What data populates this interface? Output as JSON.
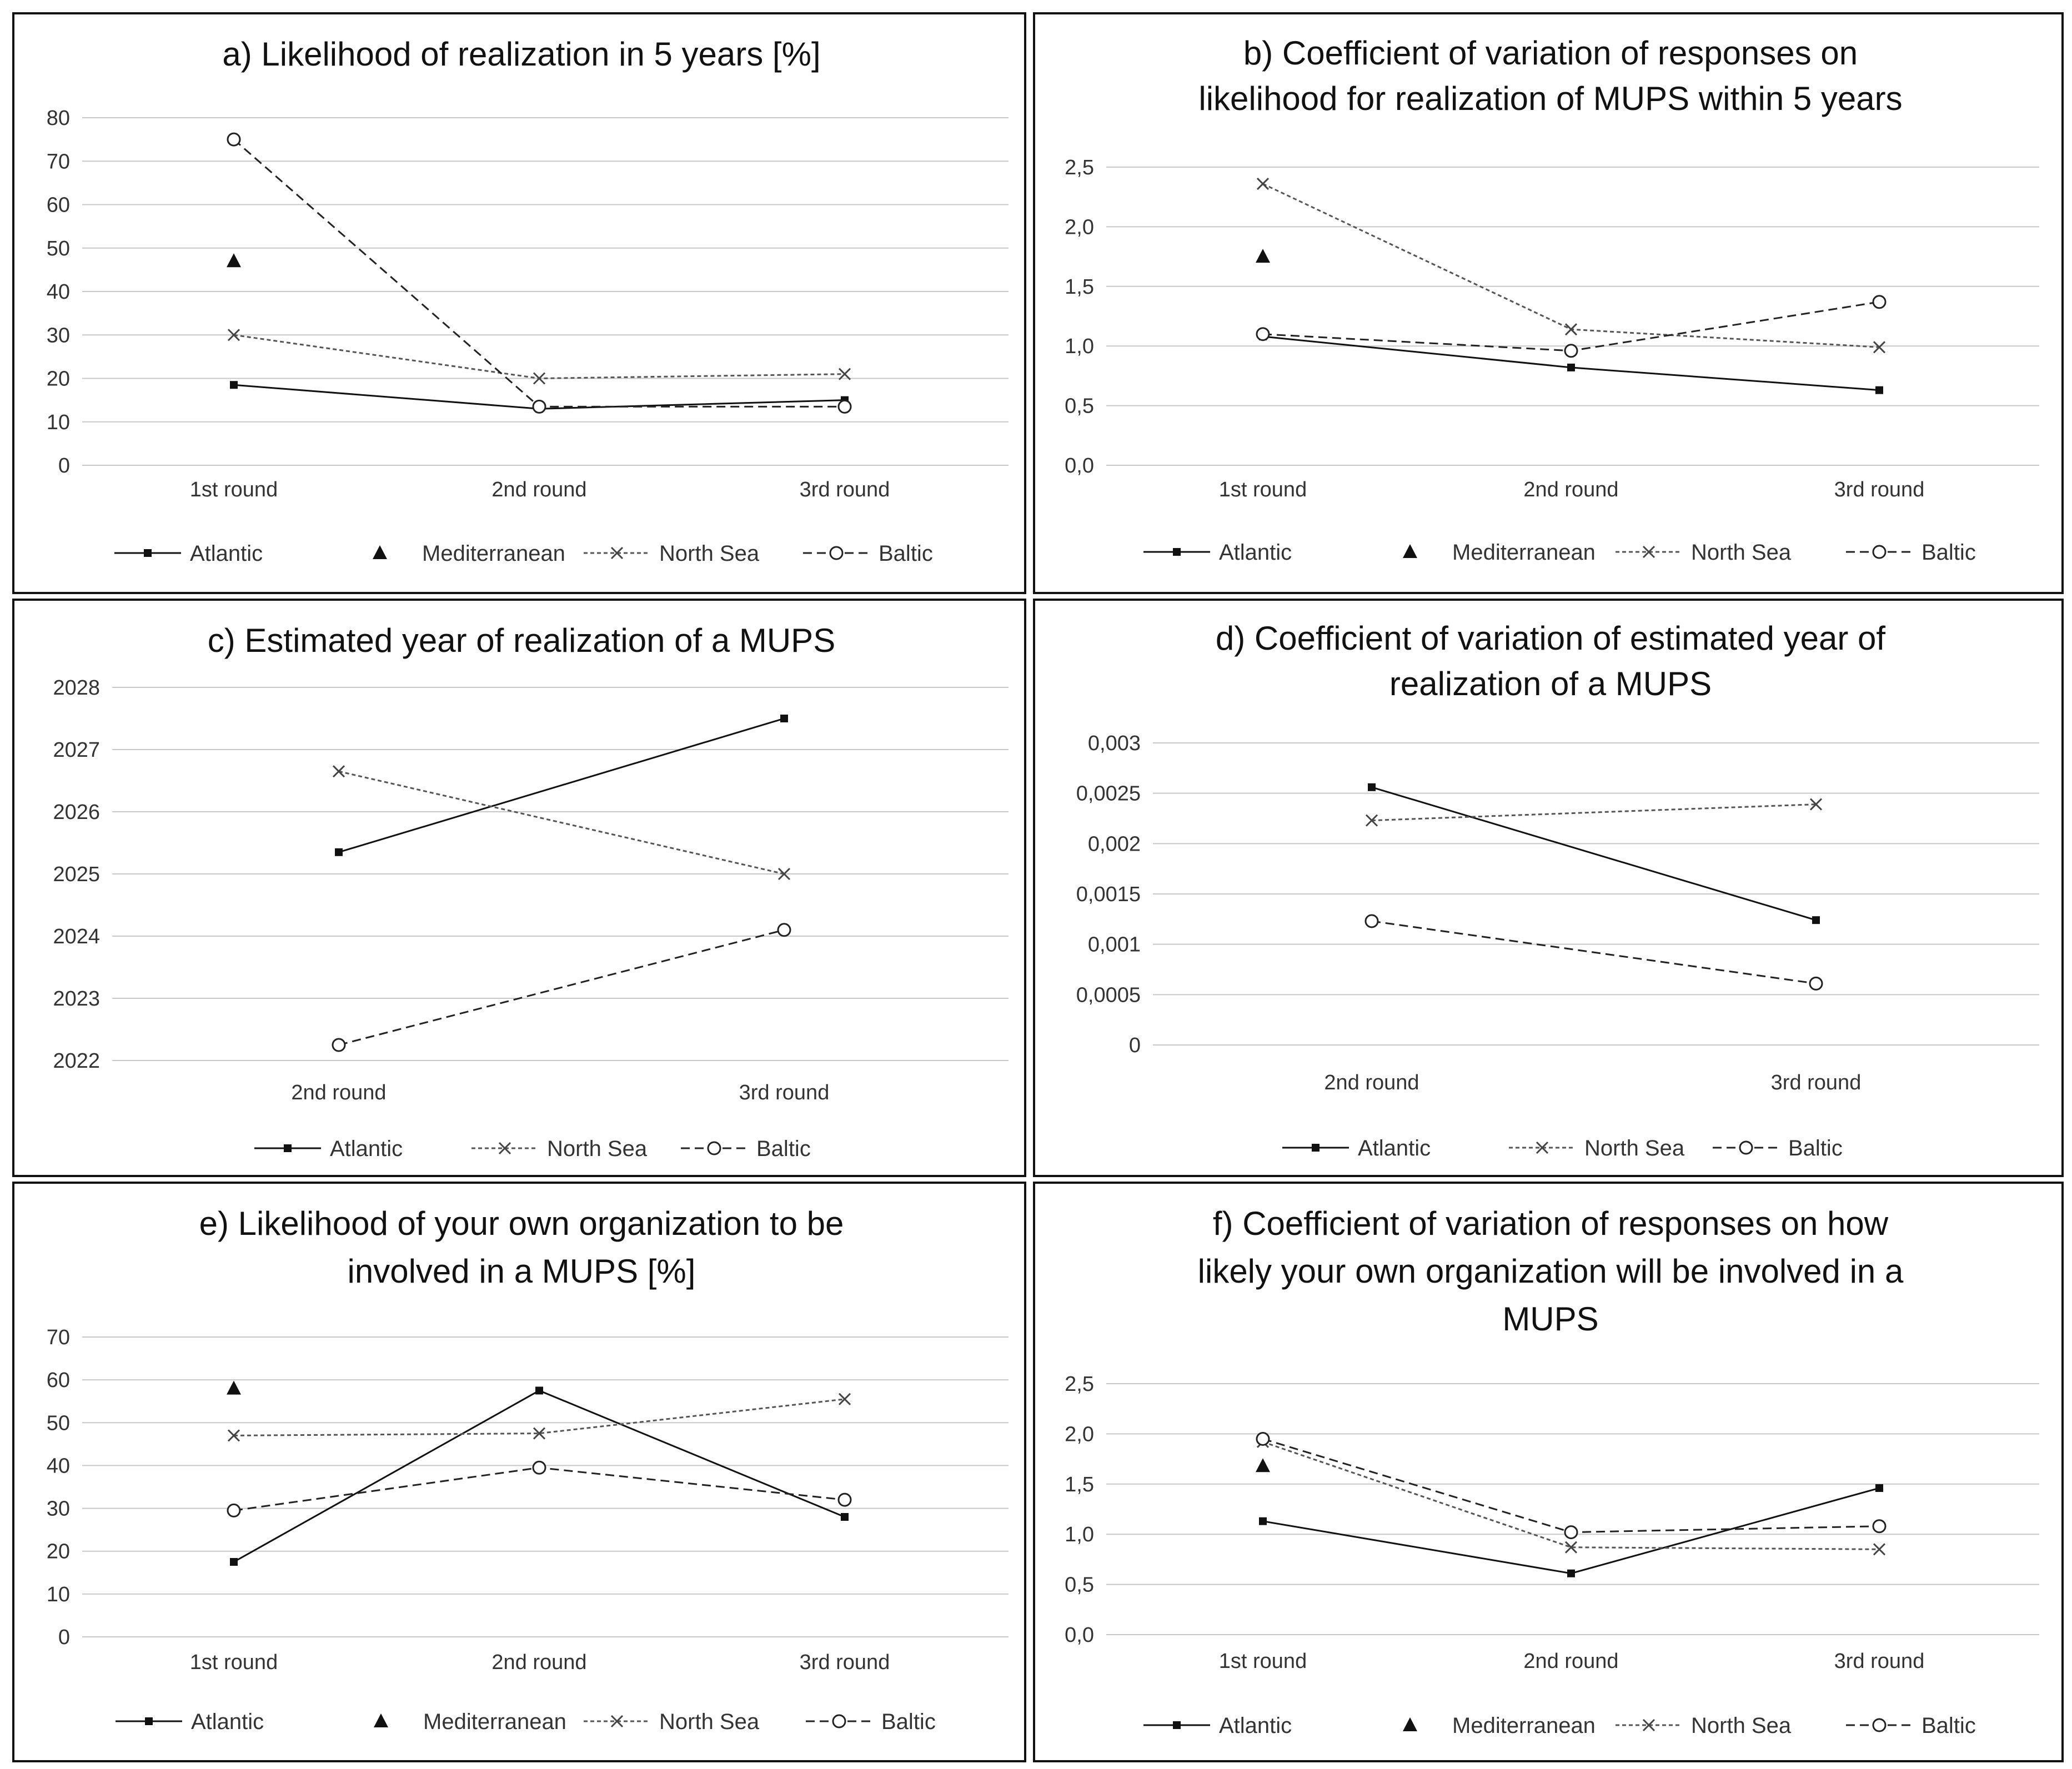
{
  "chart_data": [
    {
      "type": "line",
      "title_lines": [
        "a) Likelihood of realization in 5 years [%]"
      ],
      "categories": [
        "1st round",
        "2nd round",
        "3rd round"
      ],
      "ylim": [
        0,
        80
      ],
      "yticks": [
        "0",
        "10",
        "20",
        "30",
        "40",
        "50",
        "60",
        "70",
        "80"
      ],
      "grid": true,
      "legend": "bottom",
      "series": [
        {
          "name": "Atlantic",
          "style": "atlantic",
          "values": [
            18.5,
            13,
            15
          ]
        },
        {
          "name": "Mediterranean",
          "style": "mediterranean",
          "values": [
            47,
            null,
            null
          ]
        },
        {
          "name": "North Sea",
          "style": "northsea",
          "values": [
            30,
            20,
            21
          ]
        },
        {
          "name": "Baltic",
          "style": "baltic",
          "values": [
            75,
            13.5,
            13.5
          ]
        }
      ]
    },
    {
      "type": "line",
      "title_lines": [
        "b) Coefficient of variation of responses on",
        "likelihood for realization of MUPS within 5 years"
      ],
      "categories": [
        "1st round",
        "2nd round",
        "3rd round"
      ],
      "ylim": [
        0,
        2.5
      ],
      "yticks": [
        "0,0",
        "0,5",
        "1,0",
        "1,5",
        "2,0",
        "2,5"
      ],
      "grid": true,
      "legend": "bottom",
      "series": [
        {
          "name": "Atlantic",
          "style": "atlantic",
          "values": [
            1.08,
            0.82,
            0.63
          ]
        },
        {
          "name": "Mediterranean",
          "style": "mediterranean",
          "values": [
            1.75,
            null,
            null
          ]
        },
        {
          "name": "North Sea",
          "style": "northsea",
          "values": [
            2.36,
            1.14,
            0.99
          ]
        },
        {
          "name": "Baltic",
          "style": "baltic",
          "values": [
            1.1,
            0.96,
            1.37
          ]
        }
      ]
    },
    {
      "type": "line",
      "title_lines": [
        "c) Estimated year of realization of a MUPS"
      ],
      "categories": [
        "2nd round",
        "3rd round"
      ],
      "ylim": [
        2022,
        2028
      ],
      "yticks": [
        "2022",
        "2023",
        "2024",
        "2025",
        "2026",
        "2027",
        "2028"
      ],
      "grid": true,
      "legend": "bottom",
      "series": [
        {
          "name": "Atlantic",
          "style": "atlantic",
          "values": [
            2025.35,
            2027.5
          ]
        },
        {
          "name": "North Sea",
          "style": "northsea",
          "values": [
            2026.65,
            2025.0
          ]
        },
        {
          "name": "Baltic",
          "style": "baltic",
          "values": [
            2022.25,
            2024.1
          ]
        }
      ]
    },
    {
      "type": "line",
      "title_lines": [
        "d) Coefficient of variation of estimated year of",
        "realization of a MUPS"
      ],
      "categories": [
        "2nd round",
        "3rd round"
      ],
      "ylim": [
        0,
        0.003
      ],
      "yticks": [
        "0",
        "0,0005",
        "0,001",
        "0,0015",
        "0,002",
        "0,0025",
        "0,003"
      ],
      "grid": true,
      "legend": "bottom",
      "series": [
        {
          "name": "Atlantic",
          "style": "atlantic",
          "values": [
            0.00256,
            0.00124
          ]
        },
        {
          "name": "North Sea",
          "style": "northsea",
          "values": [
            0.00223,
            0.00239
          ]
        },
        {
          "name": "Baltic",
          "style": "baltic",
          "values": [
            0.00123,
            0.00061
          ]
        }
      ]
    },
    {
      "type": "line",
      "title_lines": [
        "e) Likelihood of your own organization to be",
        "involved in a MUPS [%]"
      ],
      "categories": [
        "1st round",
        "2nd round",
        "3rd round"
      ],
      "ylim": [
        0,
        70
      ],
      "yticks": [
        "0",
        "10",
        "20",
        "30",
        "40",
        "50",
        "60",
        "70"
      ],
      "grid": true,
      "legend": "bottom",
      "series": [
        {
          "name": "Atlantic",
          "style": "atlantic",
          "values": [
            17.5,
            57.5,
            28
          ]
        },
        {
          "name": "Mediterranean",
          "style": "mediterranean",
          "values": [
            58,
            null,
            null
          ]
        },
        {
          "name": "North Sea",
          "style": "northsea",
          "values": [
            47,
            47.5,
            55.5
          ]
        },
        {
          "name": "Baltic",
          "style": "baltic",
          "values": [
            29.5,
            39.5,
            32
          ]
        }
      ]
    },
    {
      "type": "line",
      "title_lines": [
        "f) Coefficient of variation of responses on how",
        "likely your own organization will be involved in a",
        "MUPS"
      ],
      "categories": [
        "1st round",
        "2nd round",
        "3rd round"
      ],
      "ylim": [
        0,
        2.5
      ],
      "yticks": [
        "0,0",
        "0,5",
        "1,0",
        "1,5",
        "2,0",
        "2,5"
      ],
      "grid": true,
      "legend": "bottom",
      "series": [
        {
          "name": "Atlantic",
          "style": "atlantic",
          "values": [
            1.13,
            0.61,
            1.46
          ]
        },
        {
          "name": "Mediterranean",
          "style": "mediterranean",
          "values": [
            1.68,
            null,
            null
          ]
        },
        {
          "name": "North Sea",
          "style": "northsea",
          "values": [
            1.92,
            0.87,
            0.85
          ]
        },
        {
          "name": "Baltic",
          "style": "baltic",
          "values": [
            1.95,
            1.02,
            1.08
          ]
        }
      ]
    }
  ]
}
